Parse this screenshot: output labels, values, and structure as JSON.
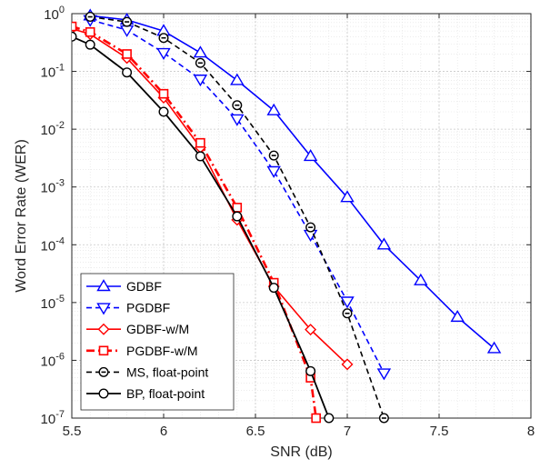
{
  "chart_data": {
    "type": "line",
    "title": "",
    "xlabel": "SNR (dB)",
    "ylabel": "Word Error Rate (WER)",
    "xlim": [
      5.5,
      8.0
    ],
    "ylim": [
      1e-07,
      1
    ],
    "yscale": "log",
    "grid": true,
    "minor_grid": true,
    "legend_position": "bottom-left",
    "x_ticks": [
      "5.5",
      "6",
      "6.5",
      "7",
      "7.5",
      "8"
    ],
    "y_ticks": [
      {
        "base": "10",
        "exp": "0",
        "value": 1
      },
      {
        "base": "10",
        "exp": "-1",
        "value": 0.1
      },
      {
        "base": "10",
        "exp": "-2",
        "value": 0.01
      },
      {
        "base": "10",
        "exp": "-3",
        "value": 0.001
      },
      {
        "base": "10",
        "exp": "-4",
        "value": 0.0001
      },
      {
        "base": "10",
        "exp": "-5",
        "value": 1e-05
      },
      {
        "base": "10",
        "exp": "-6",
        "value": 1e-06
      },
      {
        "base": "10",
        "exp": "-7",
        "value": 1e-07
      }
    ],
    "series": [
      {
        "name": "GDBF",
        "color": "#0000ff",
        "line_style": "solid",
        "line_width": 1.6,
        "marker": "triangle-up",
        "points": [
          [
            5.6,
            0.92
          ],
          [
            5.8,
            0.78
          ],
          [
            6.0,
            0.5
          ],
          [
            6.2,
            0.21
          ],
          [
            6.4,
            0.07
          ],
          [
            6.6,
            0.021
          ],
          [
            6.8,
            0.0034
          ],
          [
            7.0,
            0.00066
          ],
          [
            7.2,
            0.0001
          ],
          [
            7.4,
            2.4e-05
          ],
          [
            7.6,
            5.6e-06
          ],
          [
            7.8,
            1.6e-06
          ]
        ]
      },
      {
        "name": "PGDBF",
        "color": "#0000ff",
        "line_style": "dashed",
        "line_width": 1.6,
        "marker": "triangle-down",
        "points": [
          [
            5.6,
            0.78
          ],
          [
            5.8,
            0.52
          ],
          [
            6.0,
            0.21
          ],
          [
            6.2,
            0.073
          ],
          [
            6.4,
            0.015
          ],
          [
            6.6,
            0.0019
          ],
          [
            6.8,
            0.00015
          ],
          [
            7.0,
            1.05e-05
          ],
          [
            7.2,
            6e-07
          ]
        ]
      },
      {
        "name": "GDBF-w/M",
        "color": "#ff0000",
        "line_style": "solid",
        "line_width": 1.6,
        "marker": "diamond",
        "points": [
          [
            5.5,
            0.55
          ],
          [
            5.6,
            0.44
          ],
          [
            5.8,
            0.17
          ],
          [
            6.0,
            0.035
          ],
          [
            6.2,
            0.0048
          ],
          [
            6.4,
            0.00027
          ],
          [
            6.6,
            1.9e-05
          ],
          [
            6.8,
            3.4e-06
          ],
          [
            7.0,
            8.5e-07
          ]
        ]
      },
      {
        "name": "PGDBF-w/M",
        "color": "#ff0000",
        "line_style": "dash-dot",
        "line_width": 2.6,
        "marker": "square",
        "points": [
          [
            5.5,
            0.6
          ],
          [
            5.6,
            0.48
          ],
          [
            5.8,
            0.2
          ],
          [
            6.0,
            0.041
          ],
          [
            6.2,
            0.0058
          ],
          [
            6.4,
            0.00044
          ],
          [
            6.6,
            2.2e-05
          ],
          [
            6.8,
            5e-07
          ],
          [
            6.83,
            1e-07
          ]
        ]
      },
      {
        "name": "MS, float-point",
        "color": "#000000",
        "line_style": "dashed",
        "line_width": 1.6,
        "marker": "circle-dot",
        "points": [
          [
            5.6,
            0.88
          ],
          [
            5.8,
            0.72
          ],
          [
            6.0,
            0.38
          ],
          [
            6.2,
            0.14
          ],
          [
            6.4,
            0.026
          ],
          [
            6.6,
            0.0035
          ],
          [
            6.8,
            0.0002
          ],
          [
            7.0,
            6.5e-06
          ],
          [
            7.2,
            1e-07
          ]
        ]
      },
      {
        "name": "BP, float-point",
        "color": "#000000",
        "line_style": "solid",
        "line_width": 1.8,
        "marker": "circle",
        "points": [
          [
            5.5,
            0.4
          ],
          [
            5.6,
            0.29
          ],
          [
            5.8,
            0.096
          ],
          [
            6.0,
            0.02
          ],
          [
            6.2,
            0.0034
          ],
          [
            6.4,
            0.00031
          ],
          [
            6.6,
            1.8e-05
          ],
          [
            6.8,
            6.5e-07
          ],
          [
            6.9,
            1e-07
          ]
        ]
      }
    ]
  }
}
